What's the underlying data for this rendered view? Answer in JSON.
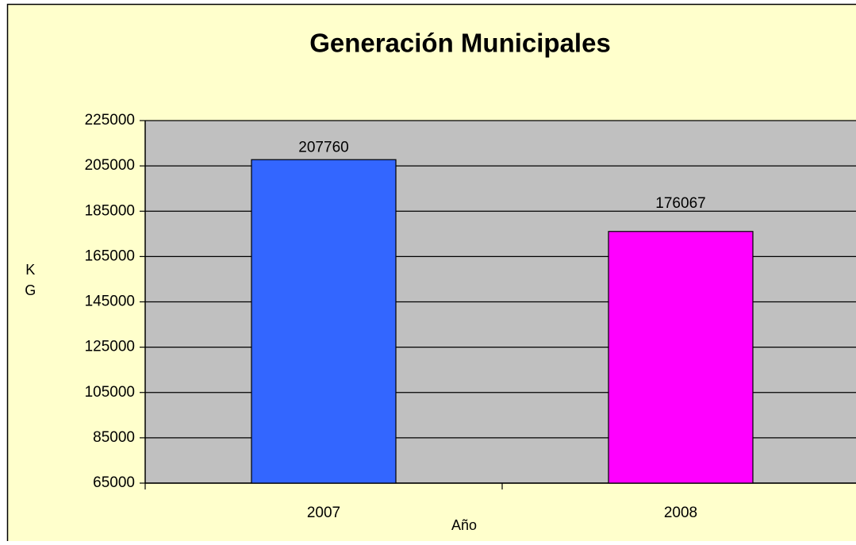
{
  "chart_data": {
    "type": "bar",
    "title": "Generación Municipales",
    "categories": [
      "2007",
      "2008"
    ],
    "series": [
      {
        "name": "KG",
        "colors": [
          "#3366ff",
          "#ff00ff"
        ],
        "values": [
          207760,
          176067
        ]
      }
    ],
    "y_label": "KG",
    "x_label": "Año",
    "ylim": [
      65000,
      225000
    ],
    "yticks": [
      65000,
      85000,
      105000,
      125000,
      145000,
      165000,
      185000,
      205000,
      225000
    ],
    "grid": true
  }
}
